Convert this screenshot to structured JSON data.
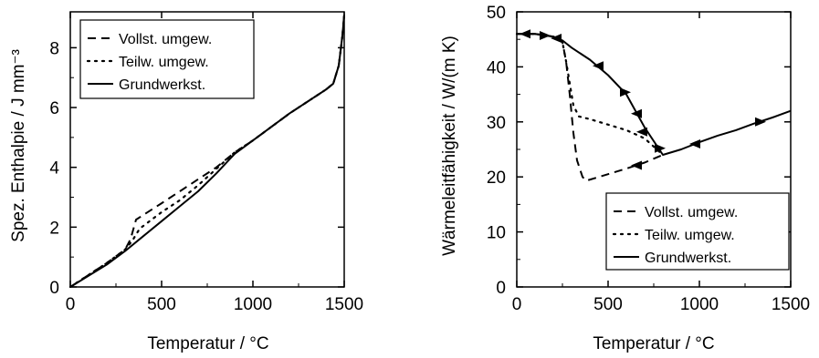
{
  "chart_data": [
    {
      "type": "line",
      "title": "",
      "xlabel": "Temperatur / °C",
      "ylabel": "Spez. Enthalpie / J mm⁻³",
      "xlim": [
        0,
        1500
      ],
      "ylim": [
        0,
        9.2
      ],
      "xticks": [
        0,
        500,
        1000,
        1500
      ],
      "yticks": [
        0,
        2,
        4,
        6,
        8
      ],
      "xtick_labels": [
        "0",
        "500",
        "1000",
        "1500"
      ],
      "ytick_labels": [
        "0",
        "2",
        "4",
        "6",
        "8"
      ],
      "grid": false,
      "legend_position": "top-left",
      "series": [
        {
          "name": "Vollst. umgew.",
          "style": "dashed",
          "x": [
            0,
            200,
            300,
            330,
            360,
            500,
            600,
            700,
            800,
            900,
            1000,
            1200,
            1400,
            1440,
            1470,
            1490,
            1500
          ],
          "y": [
            0,
            0.8,
            1.25,
            1.6,
            2.25,
            2.8,
            3.2,
            3.6,
            4.0,
            4.5,
            4.9,
            5.8,
            6.6,
            6.8,
            7.4,
            8.4,
            9.1
          ]
        },
        {
          "name": "Teilw. umgew.",
          "style": "dotted",
          "x": [
            0,
            200,
            300,
            340,
            380,
            500,
            600,
            700,
            800,
            900,
            1000,
            1200,
            1400,
            1440,
            1470,
            1490,
            1500
          ],
          "y": [
            0,
            0.8,
            1.25,
            1.55,
            1.95,
            2.5,
            2.9,
            3.4,
            3.95,
            4.5,
            4.9,
            5.8,
            6.6,
            6.8,
            7.4,
            8.4,
            9.1
          ]
        },
        {
          "name": "Grundwerkst.",
          "style": "solid",
          "x": [
            0,
            200,
            300,
            400,
            500,
            600,
            700,
            800,
            900,
            1000,
            1200,
            1400,
            1440,
            1470,
            1490,
            1500
          ],
          "y": [
            0,
            0.75,
            1.2,
            1.7,
            2.2,
            2.7,
            3.2,
            3.8,
            4.45,
            4.9,
            5.8,
            6.6,
            6.8,
            7.4,
            8.4,
            9.1
          ]
        }
      ]
    },
    {
      "type": "line",
      "title": "",
      "xlabel": "Temperatur / °C",
      "ylabel": "Wärmeleitfähigkeit / W/(m K)",
      "xlim": [
        0,
        1500
      ],
      "ylim": [
        0,
        50
      ],
      "xticks": [
        0,
        500,
        1000,
        1500
      ],
      "yticks": [
        0,
        10,
        20,
        30,
        40,
        50
      ],
      "xtick_labels": [
        "0",
        "500",
        "1000",
        "1500"
      ],
      "ytick_labels": [
        "0",
        "10",
        "20",
        "30",
        "40",
        "50"
      ],
      "grid": false,
      "legend_position": "bottom-right",
      "series": [
        {
          "name": "Vollst. umgew.",
          "style": "dashed",
          "x": [
            0,
            100,
            200,
            250,
            270,
            290,
            310,
            330,
            360,
            380,
            500,
            600,
            700,
            800
          ],
          "y": [
            46,
            46,
            45.5,
            44.5,
            41,
            35,
            28,
            23,
            20,
            19.3,
            20.5,
            21.5,
            22.6,
            24
          ]
        },
        {
          "name": "Teilw. umgew.",
          "style": "dotted",
          "x": [
            0,
            100,
            200,
            250,
            270,
            290,
            310,
            340,
            400,
            500,
            600,
            700,
            800
          ],
          "y": [
            46,
            46,
            45.5,
            44.5,
            41,
            37,
            33,
            31,
            30.5,
            29.5,
            28.5,
            27,
            24
          ]
        },
        {
          "name": "Grundwerkst.",
          "style": "solid",
          "x": [
            0,
            100,
            200,
            250,
            300,
            400,
            500,
            600,
            700,
            800,
            900,
            1000,
            1100,
            1200,
            1300,
            1400,
            1500
          ],
          "y": [
            46,
            46,
            45.5,
            44.8,
            43.5,
            41.3,
            38.5,
            35,
            29,
            24,
            25,
            26.3,
            27.5,
            28.5,
            29.7,
            30.8,
            32
          ]
        }
      ],
      "arrows": [
        {
          "x": 50,
          "y": 46,
          "dir": "left"
        },
        {
          "x": 150,
          "y": 45.7,
          "dir": "right"
        },
        {
          "x": 220,
          "y": 45.2,
          "dir": "left"
        },
        {
          "x": 450,
          "y": 40.2,
          "dir": "left"
        },
        {
          "x": 590,
          "y": 35.4,
          "dir": "right"
        },
        {
          "x": 660,
          "y": 31.5,
          "dir": "left"
        },
        {
          "x": 780,
          "y": 25.2,
          "dir": "right"
        },
        {
          "x": 980,
          "y": 26,
          "dir": "left"
        },
        {
          "x": 1330,
          "y": 30,
          "dir": "right"
        },
        {
          "x": 690,
          "y": 28.2,
          "dir": "left"
        },
        {
          "x": 660,
          "y": 22.1,
          "dir": "left"
        }
      ]
    }
  ]
}
